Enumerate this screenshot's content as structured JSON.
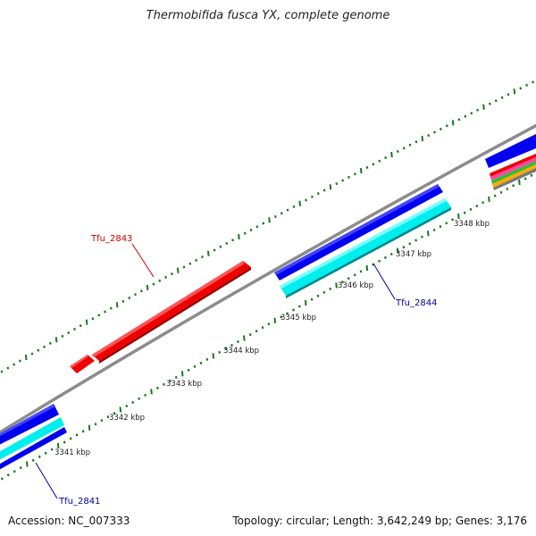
{
  "title": "Thermobifida fusca YX, complete genome",
  "accession": "Accession: NC_007333",
  "summary": "Topology: circular; Length: 3,642,249 bp; Genes: 3,176",
  "colors": {
    "backbone": "#8c8c8c",
    "forward_cds": "#0000ee",
    "reverse_cds": "#00eeee",
    "highlight_cds": "#ee0000",
    "minor_ticks": "#1a7a1a",
    "reverse_label": "#000099",
    "highlight_label": "#cc0000"
  },
  "ticks": [
    {
      "label": "3341 kbp"
    },
    {
      "label": "3342 kbp"
    },
    {
      "label": "3343 kbp"
    },
    {
      "label": "3344 kbp"
    },
    {
      "label": "3345 kbp"
    },
    {
      "label": "3346 kbp"
    },
    {
      "label": "3347 kbp"
    },
    {
      "label": "3348 kbp"
    }
  ],
  "genes": [
    {
      "name": "Tfu_2843",
      "strand": "reverse",
      "color": "red"
    },
    {
      "name": "Tfu_2844",
      "strand": "forward",
      "color": "blue"
    },
    {
      "name": "Tfu_2841",
      "strand": "forward",
      "color": "blue"
    }
  ]
}
